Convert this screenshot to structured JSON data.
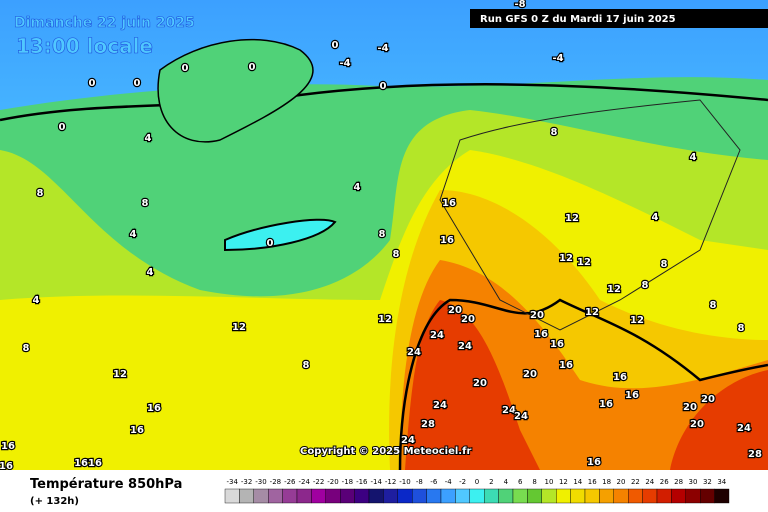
{
  "header": {
    "date": "Dimanche 22 juin 2025",
    "time": "13:00 locale",
    "run": "Run GFS 0 Z du Mardi 17 juin 2025"
  },
  "copyright": "Copyright © 2025 Meteociel.fr",
  "footer": {
    "title": "Température 850hPa",
    "lead": "(+ 132h)"
  },
  "scale": {
    "values": [
      -34,
      -32,
      -30,
      -28,
      -26,
      -24,
      -22,
      -20,
      -18,
      -16,
      -14,
      -12,
      -10,
      -8,
      -6,
      -4,
      -2,
      0,
      2,
      4,
      6,
      8,
      10,
      12,
      14,
      16,
      18,
      20,
      22,
      24,
      26,
      28,
      30,
      32,
      34
    ],
    "colors": [
      "#d9d9d9",
      "#b4b4b4",
      "#a58ca5",
      "#a064a0",
      "#963c96",
      "#8c288c",
      "#a000a0",
      "#78007d",
      "#5a0078",
      "#3c0082",
      "#14146e",
      "#1e1ea0",
      "#0a28c8",
      "#1e50dc",
      "#2878f0",
      "#3ca0ff",
      "#50c8ff",
      "#3cf0f0",
      "#3cdcb4",
      "#50d278",
      "#78dc50",
      "#64c832",
      "#b4e628",
      "#f0f000",
      "#f0dc00",
      "#f5c800",
      "#f5a000",
      "#f58200",
      "#f05a00",
      "#e63c00",
      "#d21e00",
      "#b40000",
      "#8c0000",
      "#640000",
      "#1e0000"
    ]
  },
  "contour_labels": [
    "0",
    "-4",
    "-4",
    "0",
    "0",
    "0",
    "0",
    "0",
    "-4",
    "-8",
    "0",
    "4",
    "8",
    "4",
    "8",
    "8",
    "4",
    "16",
    "12",
    "4",
    "4",
    "0",
    "8",
    "16",
    "8",
    "12",
    "12",
    "4",
    "8",
    "12",
    "8",
    "4",
    "8",
    "20",
    "20",
    "20",
    "12",
    "12",
    "12",
    "24",
    "16",
    "12",
    "8",
    "8",
    "24",
    "24",
    "16",
    "12",
    "8",
    "16",
    "20",
    "20",
    "16",
    "16",
    "16",
    "24",
    "24",
    "24",
    "16",
    "20",
    "20",
    "16",
    "28",
    "20",
    "24",
    "24",
    "16",
    "16",
    "1616",
    "16",
    "28"
  ]
}
